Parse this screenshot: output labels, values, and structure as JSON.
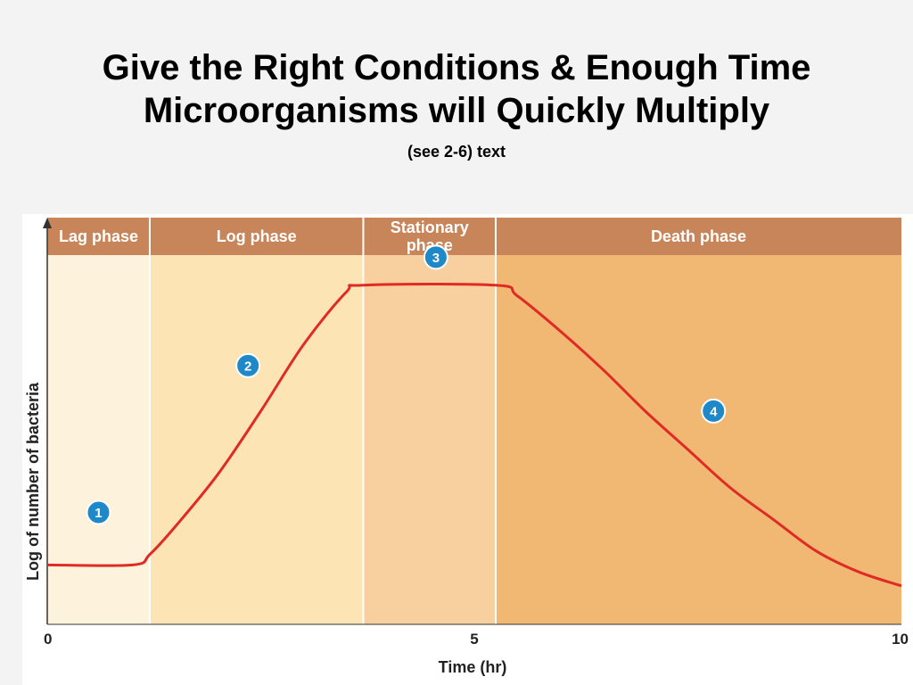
{
  "header": {
    "title_line1": "Give the Right Conditions & Enough Time",
    "title_line2": "Microorganisms will Quickly Multiply",
    "subtitle": "(see 2-6) text"
  },
  "chart_data": {
    "type": "line",
    "xlabel": "Time (hr)",
    "ylabel": "Log of number of bacteria",
    "xlim": [
      0,
      10
    ],
    "x_ticks": [
      "0",
      "5",
      "10"
    ],
    "grid": false,
    "phases": [
      {
        "label_lines": [
          "Lag phase"
        ],
        "x_start": 0,
        "x_end": 1.2,
        "color": "#fdf3dc"
      },
      {
        "label_lines": [
          "Log phase"
        ],
        "x_start": 1.2,
        "x_end": 3.7,
        "color": "#fce4b4"
      },
      {
        "label_lines": [
          "Stationary",
          "phase"
        ],
        "x_start": 3.7,
        "x_end": 5.25,
        "color": "#f8cf9f"
      },
      {
        "label_lines": [
          "Death phase"
        ],
        "x_start": 5.25,
        "x_end": 10,
        "color": "#f0b873"
      }
    ],
    "phase_header_color": "#c8855a",
    "curve_color": "#e02b24",
    "marker_color": "#1e88c9",
    "curve": {
      "x": [
        0,
        1.0,
        1.2,
        1.5,
        2.0,
        2.5,
        3.0,
        3.5,
        3.7,
        5.25,
        5.5,
        6.0,
        6.5,
        7.0,
        7.5,
        8.0,
        8.5,
        9.0,
        9.5,
        10
      ],
      "y": [
        0.17,
        0.17,
        0.2,
        0.28,
        0.43,
        0.61,
        0.8,
        0.95,
        0.97,
        0.97,
        0.94,
        0.84,
        0.73,
        0.61,
        0.5,
        0.39,
        0.3,
        0.21,
        0.15,
        0.11
      ]
    },
    "markers": [
      {
        "label": "1",
        "x": 0.6,
        "y": 0.32
      },
      {
        "label": "2",
        "x": 2.35,
        "y": 0.74
      },
      {
        "label": "3",
        "x": 4.55,
        "y": 1.05
      },
      {
        "label": "4",
        "x": 7.8,
        "y": 0.61
      }
    ]
  }
}
